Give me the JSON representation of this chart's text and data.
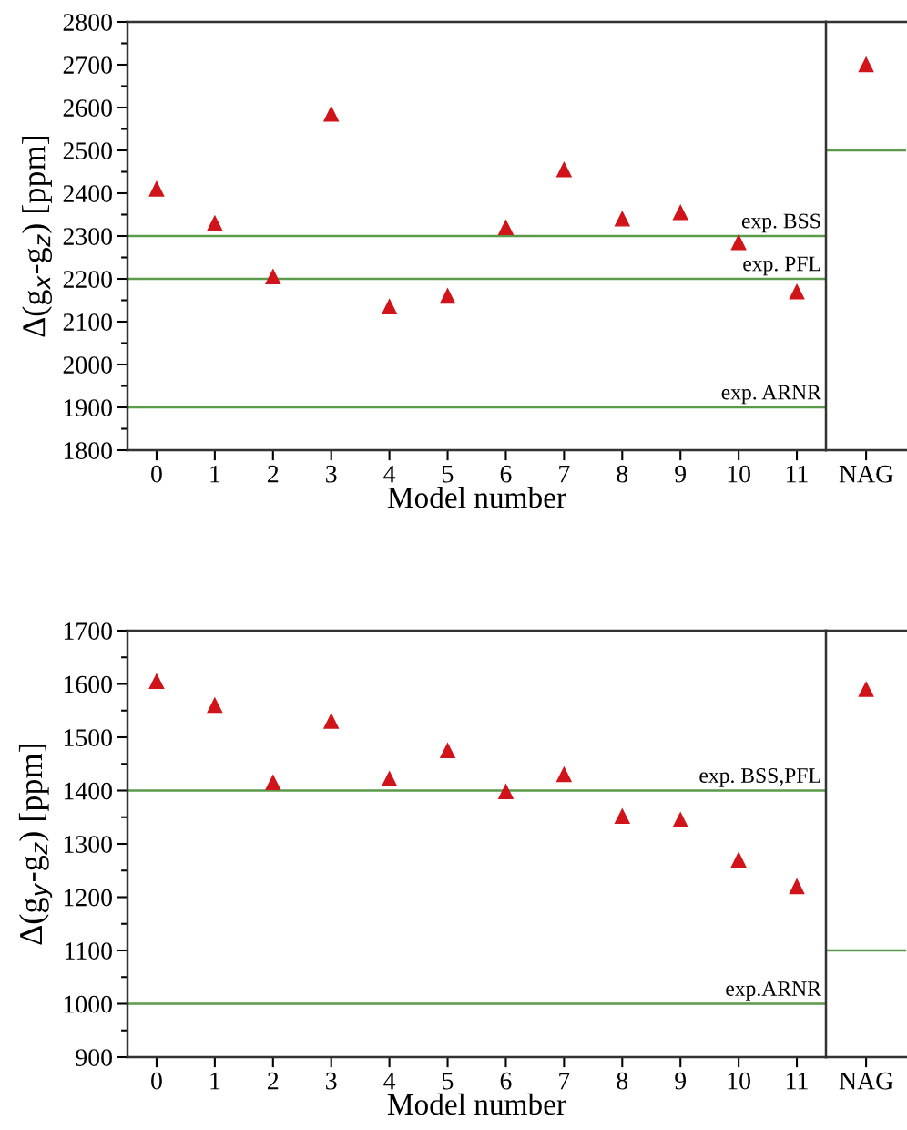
{
  "chart_data": [
    {
      "type": "scatter",
      "categories": [
        "0",
        "1",
        "2",
        "3",
        "4",
        "5",
        "6",
        "7",
        "8",
        "9",
        "10",
        "11"
      ],
      "xlabel": "Model number",
      "ylabel": "Δ(g$_{x}$-g$_{z}$) [ppm]",
      "marker": "triangle",
      "grid": false,
      "series": [
        {
          "color": "#d0141a",
          "values": [
            2410,
            2330,
            2205,
            2585,
            2135,
            2160,
            2320,
            2455,
            2340,
            2355,
            2285,
            2170
          ]
        }
      ],
      "ylim": [
        1800,
        2800
      ],
      "yticks": [
        1800,
        {
          "value": 1850,
          "label": null
        },
        1900,
        {
          "value": 1950,
          "label": null
        },
        2000,
        {
          "value": 2050,
          "label": null
        },
        2100,
        {
          "value": 2150,
          "label": null
        },
        2200,
        {
          "value": 2250,
          "label": null
        },
        2300,
        {
          "value": 2350,
          "label": null
        },
        2400,
        {
          "value": 2450,
          "label": null
        },
        2500,
        {
          "value": 2550,
          "label": null
        },
        2600,
        {
          "value": 2650,
          "label": null
        },
        2700,
        {
          "value": 2750,
          "label": null
        },
        2800
      ],
      "ref_lines": [
        {
          "axis": "y",
          "value": 2300,
          "label": "exp. BSS",
          "color": "#5a9a4a"
        },
        {
          "axis": "y",
          "value": 2200,
          "label": "exp. PFL",
          "color": "#5a9a4a"
        },
        {
          "axis": "y",
          "value": 1900,
          "label": "exp. ARNR",
          "color": "#5a9a4a"
        }
      ]
    },
    {
      "type": "scatter",
      "categories": [
        "NAG"
      ],
      "marker": "triangle",
      "tick_labels": "x",
      "series": [
        {
          "color": "#d0141a",
          "values": [
            2700
          ]
        }
      ],
      "ylim": [
        1800,
        2800
      ],
      "ref_lines": [
        {
          "axis": "y",
          "value": 2500,
          "label": null,
          "color": "#5a9a4a"
        }
      ]
    },
    {
      "type": "scatter",
      "categories": [
        "0",
        "1",
        "2",
        "3",
        "4",
        "5",
        "6",
        "7",
        "8",
        "9",
        "10",
        "11"
      ],
      "xlabel": "Model number",
      "ylabel": "Δ(g$_{y}$-g$_{z}$) [ppm]",
      "marker": "triangle",
      "grid": false,
      "series": [
        {
          "color": "#d0141a",
          "values": [
            1605,
            1560,
            1415,
            1530,
            1422,
            1475,
            1398,
            1430,
            1352,
            1345,
            1270,
            1220
          ]
        }
      ],
      "ylim": [
        900,
        1700
      ],
      "yticks": [
        900,
        {
          "value": 950,
          "label": null
        },
        1000,
        {
          "value": 1050,
          "label": null
        },
        1100,
        {
          "value": 1150,
          "label": null
        },
        1200,
        {
          "value": 1250,
          "label": null
        },
        1300,
        {
          "value": 1350,
          "label": null
        },
        1400,
        {
          "value": 1450,
          "label": null
        },
        1500,
        {
          "value": 1550,
          "label": null
        },
        1600,
        {
          "value": 1650,
          "label": null
        },
        1700
      ],
      "ref_lines": [
        {
          "axis": "y",
          "value": 1400,
          "label": "exp. BSS,PFL",
          "color": "#5a9a4a"
        },
        {
          "axis": "y",
          "value": 1000,
          "label": "exp.ARNR",
          "color": "#5a9a4a"
        }
      ]
    },
    {
      "type": "scatter",
      "categories": [
        "NAG"
      ],
      "marker": "triangle",
      "tick_labels": "x",
      "series": [
        {
          "color": "#d0141a",
          "values": [
            1590
          ]
        }
      ],
      "ylim": [
        900,
        1700
      ],
      "ref_lines": [
        {
          "axis": "y",
          "value": 1100,
          "label": null,
          "color": "#5a9a4a"
        }
      ]
    }
  ]
}
